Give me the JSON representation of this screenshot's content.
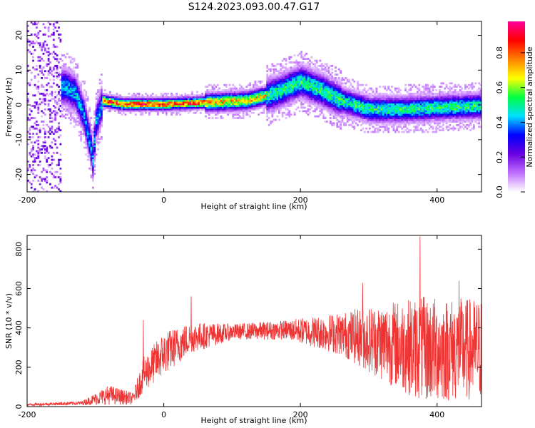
{
  "title": "S124.2023.093.00.47.G17",
  "chart_data": [
    {
      "type": "heatmap",
      "xlabel": "Height of straight line (km)",
      "ylabel": "Frequency (Hz)",
      "xlim": [
        -200,
        465
      ],
      "ylim": [
        -25,
        24
      ],
      "xticks": [
        -200,
        0,
        200,
        400
      ],
      "yticks": [
        -20,
        -10,
        0,
        10,
        20
      ],
      "colorbar": {
        "label": "Normalized spectral amplitude",
        "range": [
          0.0,
          0.98
        ],
        "ticks": [
          "0.0",
          "0.2",
          "0.4",
          "0.6",
          "0.8"
        ],
        "colors": [
          "#ffffff",
          "#c070ff",
          "#6a00e0",
          "#0000ff",
          "#00e0ff",
          "#00ff40",
          "#ffff00",
          "#ff8000",
          "#ff0000",
          "#ff0099"
        ]
      },
      "ridge": [
        {
          "x": -145,
          "y": 5
        },
        {
          "x": -130,
          "y": 3
        },
        {
          "x": -118,
          "y": -3
        },
        {
          "x": -110,
          "y": -10
        },
        {
          "x": -105,
          "y": -16
        },
        {
          "x": -100,
          "y": -5
        },
        {
          "x": -90,
          "y": 1
        },
        {
          "x": -60,
          "y": 0
        },
        {
          "x": 0,
          "y": 0
        },
        {
          "x": 60,
          "y": 0.5
        },
        {
          "x": 120,
          "y": 1
        },
        {
          "x": 160,
          "y": 3
        },
        {
          "x": 200,
          "y": 6.5
        },
        {
          "x": 230,
          "y": 4
        },
        {
          "x": 260,
          "y": 1
        },
        {
          "x": 300,
          "y": -1.5
        },
        {
          "x": 350,
          "y": -1.5
        },
        {
          "x": 400,
          "y": -1
        },
        {
          "x": 465,
          "y": -0.5
        }
      ]
    },
    {
      "type": "line",
      "xlabel": "Height of straight line (km)",
      "ylabel": "SNR (10 * v/v)",
      "xlim": [
        -200,
        465
      ],
      "ylim": [
        0,
        870
      ],
      "xticks": [
        -200,
        0,
        200,
        400
      ],
      "yticks": [
        0,
        200,
        400,
        600,
        800
      ],
      "color": "#ee3333",
      "envelope": [
        {
          "x": -200,
          "mean": 10,
          "spread": 6
        },
        {
          "x": -120,
          "mean": 18,
          "spread": 10
        },
        {
          "x": -80,
          "mean": 60,
          "spread": 50
        },
        {
          "x": -45,
          "mean": 40,
          "spread": 30
        },
        {
          "x": -30,
          "mean": 160,
          "spread": 90
        },
        {
          "x": 0,
          "mean": 270,
          "spread": 110
        },
        {
          "x": 40,
          "mean": 350,
          "spread": 80
        },
        {
          "x": 100,
          "mean": 380,
          "spread": 40
        },
        {
          "x": 180,
          "mean": 390,
          "spread": 50
        },
        {
          "x": 260,
          "mean": 370,
          "spread": 110
        },
        {
          "x": 320,
          "mean": 330,
          "spread": 200
        },
        {
          "x": 380,
          "mean": 290,
          "spread": 270
        },
        {
          "x": 465,
          "mean": 290,
          "spread": 260
        }
      ],
      "peaks": [
        {
          "x": 375,
          "y": 865
        },
        {
          "x": 291,
          "y": 628
        },
        {
          "x": 40,
          "y": 560
        },
        {
          "x": -30,
          "y": 440
        },
        {
          "x": 432,
          "y": 640
        }
      ]
    }
  ]
}
